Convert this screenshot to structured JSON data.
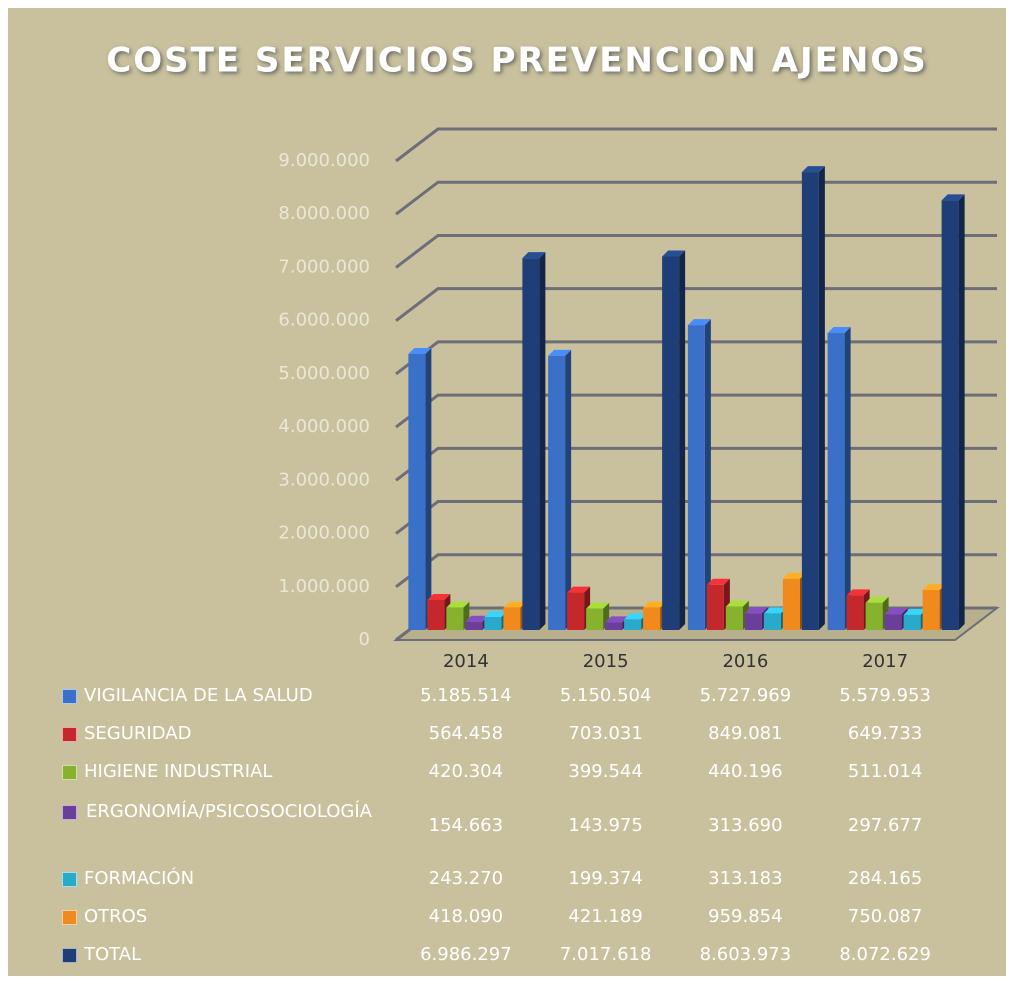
{
  "chart_data": {
    "type": "bar3d",
    "title": "COSTE SERVICIOS PREVENCION AJENOS",
    "categories": [
      "2014",
      "2015",
      "2016",
      "2017"
    ],
    "series": [
      {
        "name": "VIGILANCIA DE LA SALUD",
        "color": "#3a70c8",
        "values": [
          5185514,
          5150504,
          5727969,
          5579953
        ],
        "value_labels": [
          "5.185.514",
          "5.150.504",
          "5.727.969",
          "5.579.953"
        ]
      },
      {
        "name": "SEGURIDAD",
        "color": "#c4282c",
        "values": [
          564458,
          703031,
          849081,
          649733
        ],
        "value_labels": [
          "564.458",
          "703.031",
          "849.081",
          "649.733"
        ]
      },
      {
        "name": "HIGIENE INDUSTRIAL",
        "color": "#86b22e",
        "values": [
          420304,
          399544,
          440196,
          511014
        ],
        "value_labels": [
          "420.304",
          "399.544",
          "440.196",
          "511.014"
        ]
      },
      {
        "name": "ERGONOMÍA/PSICOSOCIOLOGÍA",
        "color": "#6b3e9c",
        "values": [
          154663,
          143975,
          313690,
          297677
        ],
        "value_labels": [
          "154.663",
          "143.975",
          "313.690",
          "297.677"
        ]
      },
      {
        "name": "FORMACIÓN",
        "color": "#2aaacb",
        "values": [
          243270,
          199374,
          313183,
          284165
        ],
        "value_labels": [
          "243.270",
          "199.374",
          "313.183",
          "284.165"
        ]
      },
      {
        "name": "OTROS",
        "color": "#f08a1c",
        "values": [
          418090,
          421189,
          959854,
          750087
        ],
        "value_labels": [
          "418.090",
          "421.189",
          "959.854",
          "750.087"
        ]
      },
      {
        "name": "TOTAL",
        "color": "#1f3e78",
        "values": [
          6986297,
          7017618,
          8603973,
          8072629
        ],
        "value_labels": [
          "6.986.297",
          "7.017.618",
          "8.603.973",
          "8.072.629"
        ]
      }
    ],
    "ylim": [
      0,
      9000000
    ],
    "yticks": [
      0,
      {
        "value": 1000000,
        "label": "1.000.000"
      },
      {
        "value": 2000000,
        "label": "2.000.000"
      },
      {
        "value": 3000000,
        "label": "3.000.000"
      },
      {
        "value": 4000000,
        "label": "4.000.000"
      },
      {
        "value": 5000000,
        "label": "5.000.000"
      },
      {
        "value": 6000000,
        "label": "6.000.000"
      },
      {
        "value": 7000000,
        "label": "7.000.000"
      },
      {
        "value": 8000000,
        "label": "8.000.000"
      },
      {
        "value": 9000000,
        "label": "9.000.000"
      }
    ],
    "grid": true
  }
}
